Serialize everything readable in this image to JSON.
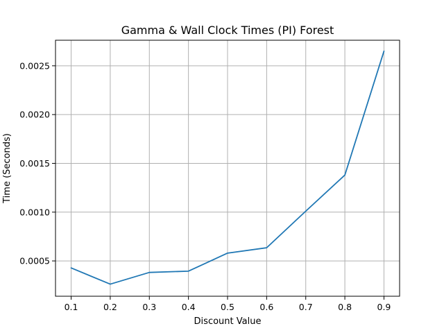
{
  "chart_data": {
    "type": "line",
    "title": "Gamma & Wall Clock Times (PI) Forest",
    "xlabel": "Discount Value",
    "ylabel": "Time (Seconds)",
    "x": [
      0.1,
      0.2,
      0.3,
      0.4,
      0.5,
      0.6,
      0.7,
      0.8,
      0.9
    ],
    "x_ticks": [
      "0.1",
      "0.2",
      "0.3",
      "0.4",
      "0.5",
      "0.6",
      "0.7",
      "0.8",
      "0.9"
    ],
    "xlim": [
      0.06,
      0.94
    ],
    "y_ticks": [
      "0.0005",
      "0.0010",
      "0.0015",
      "0.0020",
      "0.0025"
    ],
    "ylim": [
      0.000138,
      0.002762
    ],
    "grid": true,
    "legend": "none",
    "series": [
      {
        "color": "#1f77b4",
        "values": [
          0.000428,
          0.000262,
          0.000382,
          0.000395,
          0.00058,
          0.000635,
          0.00101,
          0.00138,
          0.00265
        ]
      }
    ]
  }
}
